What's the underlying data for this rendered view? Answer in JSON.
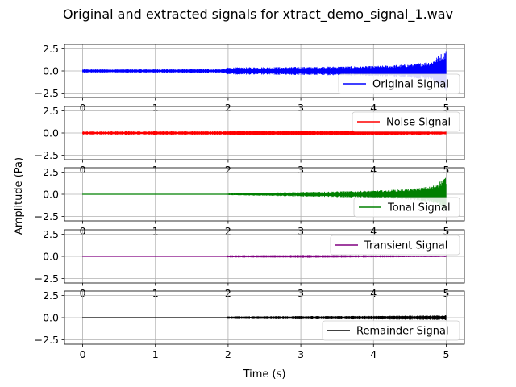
{
  "chart_data": {
    "type": "line",
    "title": "Original and extracted signals for xtract_demo_signal_1.wav",
    "xlabel": "Time (s)",
    "ylabel": "Amplitude (Pa)",
    "xlim": [
      -0.25,
      5.25
    ],
    "ylim": [
      -3,
      3
    ],
    "xticks": [
      0,
      1,
      2,
      3,
      4,
      5
    ],
    "xtick_labels": [
      "0",
      "1",
      "2",
      "3",
      "4",
      "5"
    ],
    "yticks": [
      -2.5,
      0,
      2.5
    ],
    "ytick_labels": [
      "−2.5",
      "0.0",
      "2.5"
    ],
    "grid": true,
    "legend_placement": "right",
    "series": [
      {
        "name": "Original Signal",
        "color": "#0000ff",
        "envelope": {
          "t": [
            0,
            1.95,
            2.0,
            3.0,
            4.0,
            4.5,
            4.8,
            4.95,
            5.0
          ],
          "amp": [
            0.18,
            0.2,
            0.4,
            0.45,
            0.55,
            0.75,
            1.1,
            2.1,
            2.5
          ]
        }
      },
      {
        "name": "Noise Signal",
        "color": "#ff0000",
        "envelope": {
          "t": [
            0,
            1.95,
            2.0,
            3.0,
            4.0,
            5.0
          ],
          "amp": [
            0.18,
            0.2,
            0.25,
            0.28,
            0.25,
            0.18
          ]
        }
      },
      {
        "name": "Tonal Signal",
        "color": "#008000",
        "envelope": {
          "t": [
            0,
            1.95,
            2.0,
            3.0,
            4.0,
            4.5,
            4.8,
            4.95,
            5.0
          ],
          "amp": [
            0.0,
            0.0,
            0.1,
            0.25,
            0.4,
            0.6,
            0.9,
            1.7,
            2.1
          ]
        }
      },
      {
        "name": "Transient Signal",
        "color": "#800080",
        "envelope": {
          "t": [
            0,
            1.95,
            2.0,
            3.0,
            4.0,
            5.0
          ],
          "amp": [
            0.0,
            0.0,
            0.12,
            0.15,
            0.12,
            0.08
          ]
        }
      },
      {
        "name": "Remainder Signal",
        "color": "#000000",
        "envelope": {
          "t": [
            0,
            1.95,
            2.0,
            3.0,
            4.0,
            4.8,
            5.0
          ],
          "amp": [
            0.0,
            0.0,
            0.15,
            0.18,
            0.2,
            0.25,
            0.28
          ]
        }
      }
    ]
  }
}
